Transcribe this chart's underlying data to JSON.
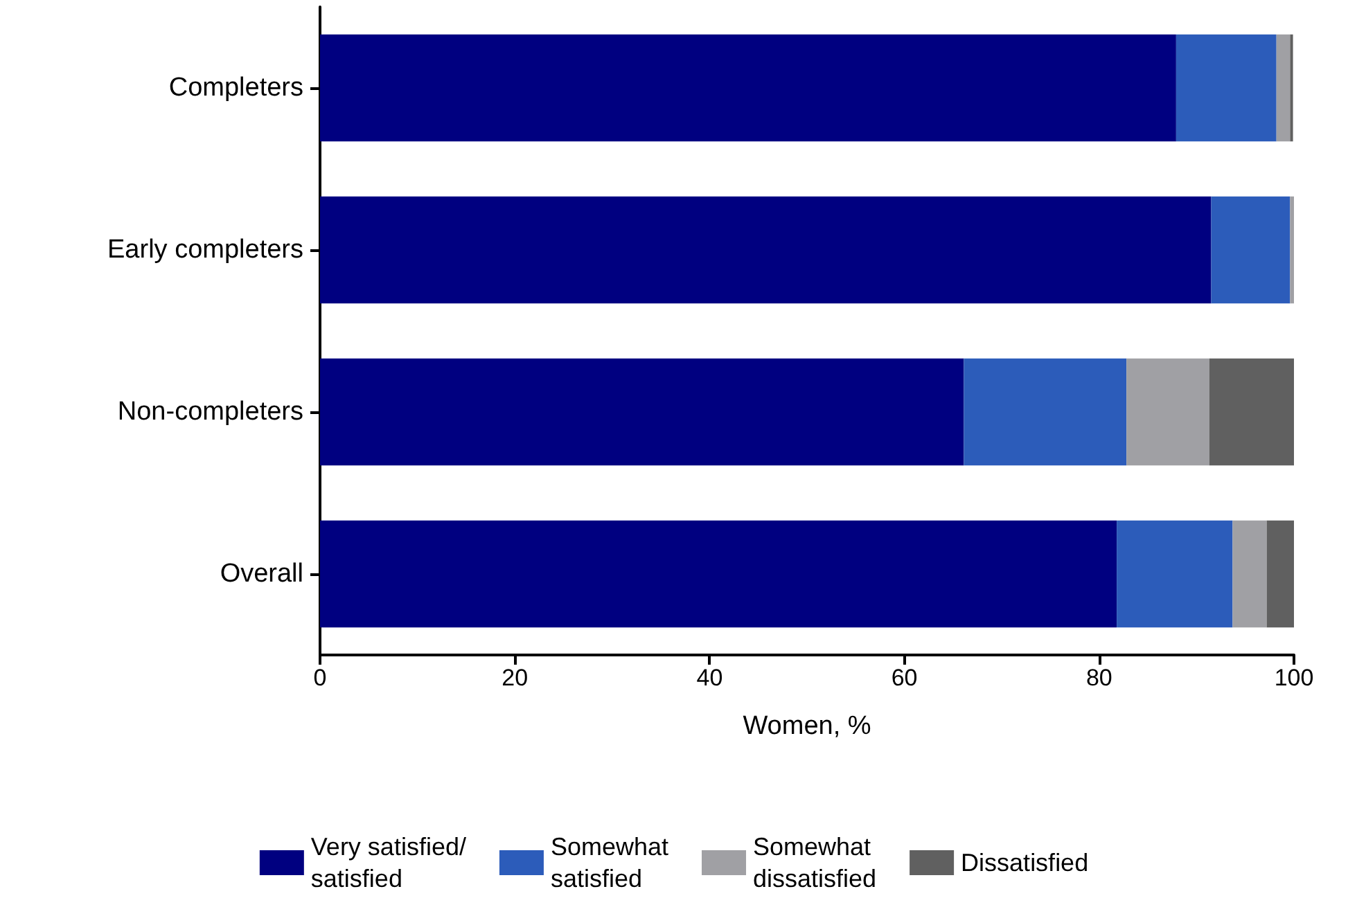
{
  "chart_data": {
    "type": "bar",
    "orientation": "horizontal",
    "stacked": true,
    "xlabel": "Women, %",
    "categories": [
      "Completers",
      "Early completers",
      "Non-completers",
      "Overall"
    ],
    "series": [
      {
        "name": "Very satisfied/\nsatisfied",
        "color": "#000080",
        "values": [
          87.9,
          91.5,
          66.1,
          81.8
        ]
      },
      {
        "name": "Somewhat\nsatisfied",
        "color": "#2c5cba",
        "values": [
          10.3,
          8.1,
          16.7,
          11.9
        ]
      },
      {
        "name": "Somewhat\ndissatisfied",
        "color": "#a0a0a4",
        "values": [
          1.4,
          0.4,
          8.5,
          3.5
        ]
      },
      {
        "name": "Dissatisfied",
        "color": "#606060",
        "values": [
          0.3,
          null,
          8.7,
          2.9
        ]
      }
    ],
    "xlim": [
      0,
      100
    ],
    "xticks": [
      0,
      20,
      40,
      60,
      80,
      100
    ],
    "grid": false,
    "legend": "bottom"
  }
}
